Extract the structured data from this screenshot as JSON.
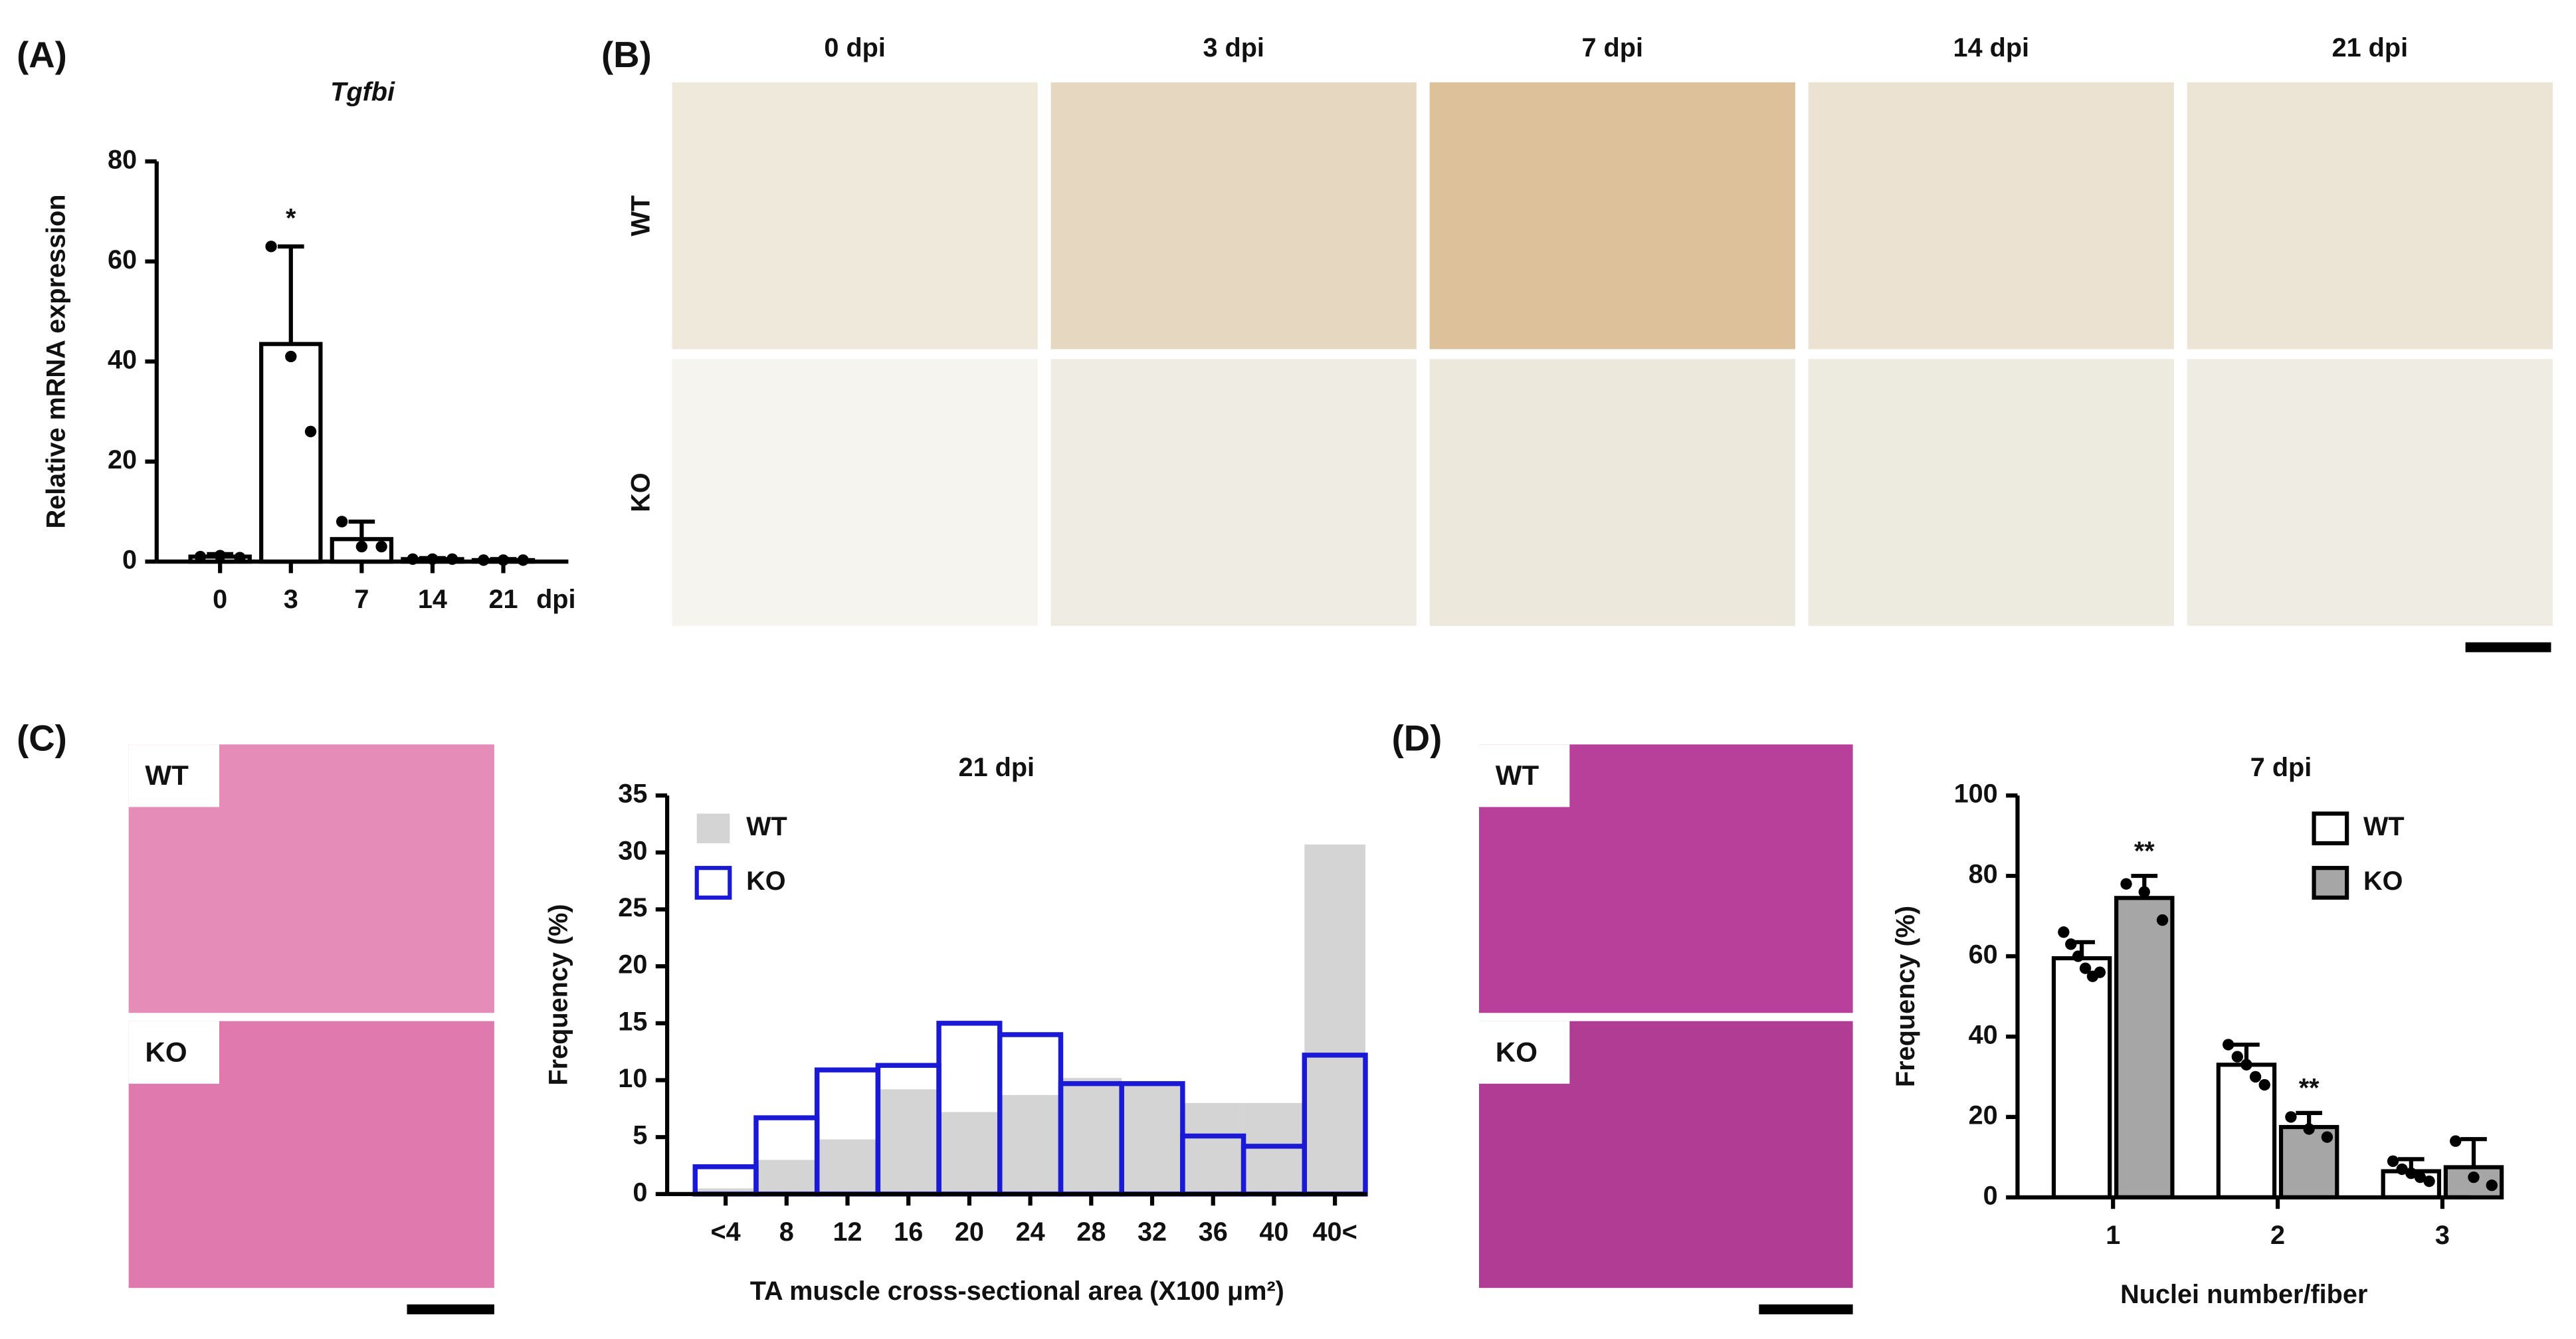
{
  "figure": {
    "panel_labels": [
      "(A)",
      "(B)",
      "(C)",
      "(D)"
    ],
    "panel_b": {
      "columns": [
        "0 dpi",
        "3 dpi",
        "7 dpi",
        "14 dpi",
        "21 dpi"
      ],
      "rows": [
        "WT",
        "KO"
      ]
    },
    "panel_c_images": [
      "WT",
      "KO"
    ],
    "panel_d_images": [
      "WT",
      "KO"
    ]
  },
  "chart_data": [
    {
      "type": "bar",
      "title": "Tgfbi",
      "y_label": "Relative mRNA expression",
      "x_unit": "dpi",
      "categories": [
        "0",
        "3",
        "7",
        "14",
        "21"
      ],
      "values": [
        1,
        43.5,
        4.5,
        0.5,
        0.3
      ],
      "errors": [
        0.5,
        19.5,
        3.5,
        0.2,
        0.2
      ],
      "points": [
        [
          1,
          1.2,
          0.8
        ],
        [
          63,
          41,
          26
        ],
        [
          8,
          3,
          3
        ],
        [
          0.5,
          0.5,
          0.5
        ],
        [
          0.3,
          0.3,
          0.3
        ]
      ],
      "annotations": [
        null,
        "*",
        null,
        null,
        null
      ],
      "color": "#ffffff",
      "ylim": [
        0,
        80
      ],
      "yticks": [
        0,
        20,
        40,
        60,
        80
      ]
    },
    {
      "type": "bar",
      "barmode": "overlay",
      "title": "21 dpi",
      "y_label": "Frequency (%)",
      "x_label": "TA muscle cross-sectional area (X100 μm²)",
      "categories": [
        "<4",
        "8",
        "12",
        "16",
        "20",
        "24",
        "28",
        "32",
        "36",
        "40",
        "40<"
      ],
      "series": [
        {
          "name": "WT",
          "color": "#d4d4d4",
          "filled": true,
          "values": [
            0.5,
            3,
            4.8,
            9.2,
            7.2,
            8.7,
            10.2,
            9.7,
            8,
            8,
            30.7
          ]
        },
        {
          "name": "KO",
          "color": "#1a1ad6",
          "filled": false,
          "values": [
            2.4,
            6.7,
            10.9,
            11.3,
            15,
            14,
            9.7,
            9.7,
            5.1,
            4.2,
            12.2
          ]
        }
      ],
      "ylim": [
        0,
        35
      ],
      "yticks": [
        0,
        5,
        10,
        15,
        20,
        25,
        30,
        35
      ]
    },
    {
      "type": "bar",
      "barmode": "group",
      "title": "7 dpi",
      "y_label": "Frequency (%)",
      "x_label": "Nuclei number/fiber",
      "categories": [
        "1",
        "2",
        "3"
      ],
      "series": [
        {
          "name": "WT",
          "color": "#ffffff",
          "values": [
            59.5,
            33,
            6.5
          ],
          "errors": [
            4,
            5,
            3
          ],
          "points": [
            [
              66,
              63,
              60,
              57,
              55,
              56
            ],
            [
              38,
              35,
              33,
              30,
              28
            ],
            [
              9,
              7,
              6,
              5,
              4
            ]
          ],
          "annotations": [
            null,
            null,
            null
          ]
        },
        {
          "name": "KO",
          "color": "#a6a6a6",
          "values": [
            74.5,
            17.5,
            7.5
          ],
          "errors": [
            5.5,
            3.5,
            7
          ],
          "points": [
            [
              78,
              76,
              69
            ],
            [
              20,
              17,
              15
            ],
            [
              14,
              5,
              3
            ]
          ],
          "annotations": [
            "**",
            "**",
            null
          ]
        }
      ],
      "ylim": [
        0,
        100
      ],
      "yticks": [
        0,
        20,
        40,
        60,
        80,
        100
      ]
    }
  ]
}
